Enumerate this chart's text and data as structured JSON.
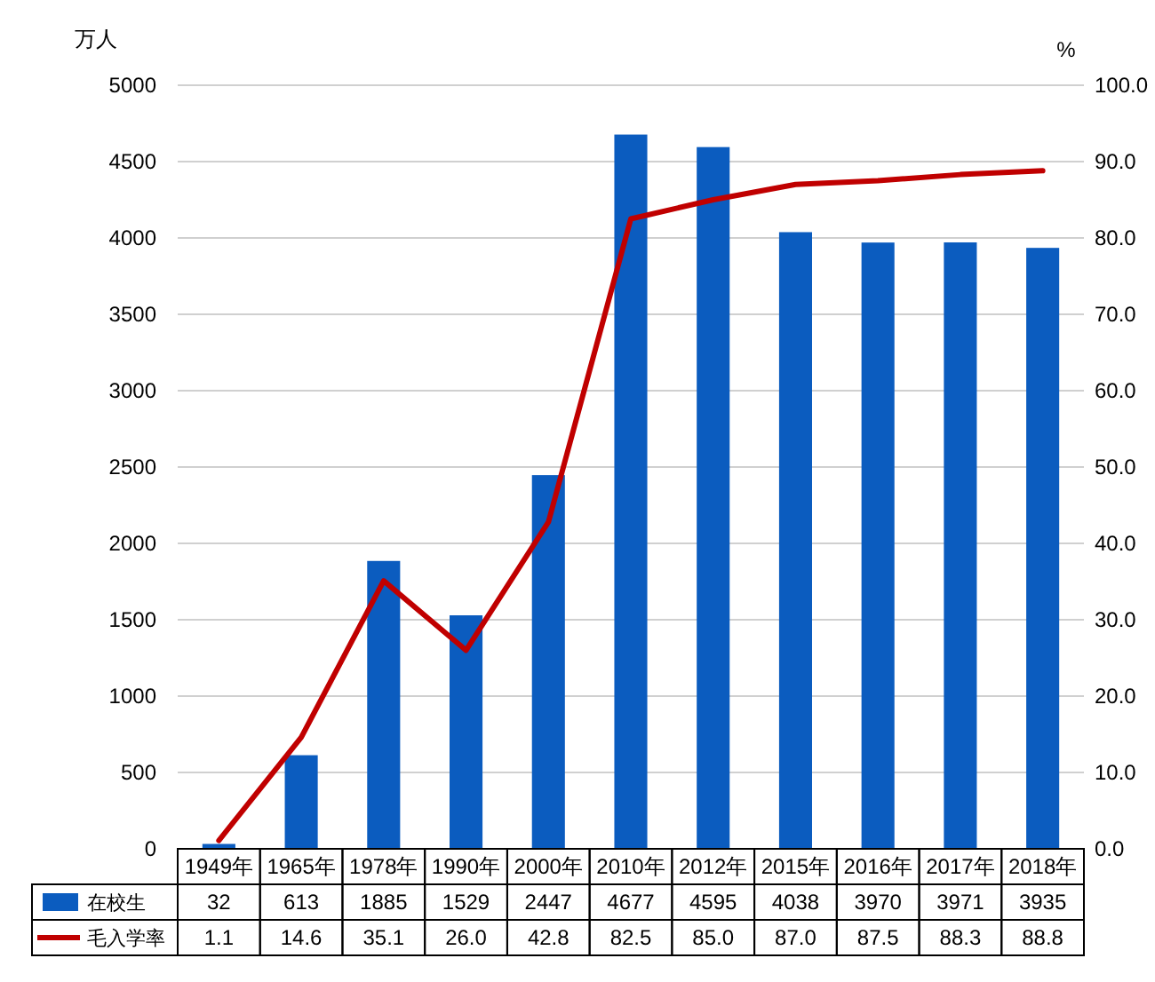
{
  "chart_data": {
    "type": "bar",
    "ylabel": "万人",
    "y2label": "%",
    "categories": [
      "1949年",
      "1965年",
      "1978年",
      "1990年",
      "2000年",
      "2010年",
      "2012年",
      "2015年",
      "2016年",
      "2017年",
      "2018年"
    ],
    "series": [
      {
        "name": "在校生",
        "color": "#0b5cbf",
        "values": [
          32,
          613,
          1885,
          1529,
          2447,
          4677,
          4595,
          4038,
          3970,
          3971,
          3935
        ]
      },
      {
        "name": "毛入学率",
        "type": "line",
        "axis": "y2",
        "color": "#c00000",
        "values": [
          1.1,
          14.6,
          35.1,
          26.0,
          42.8,
          82.5,
          85.0,
          87.0,
          87.5,
          88.3,
          88.8
        ],
        "value_labels": [
          "1.1",
          "14.6",
          "35.1",
          "26.0",
          "42.8",
          "82.5",
          "85.0",
          "87.0",
          "87.5",
          "88.3",
          "88.8"
        ]
      }
    ],
    "ylim": [
      0,
      5000
    ],
    "yticks": [
      0,
      500,
      1000,
      1500,
      2000,
      2500,
      3000,
      3500,
      4000,
      4500,
      5000
    ],
    "y2lim": [
      0,
      100
    ],
    "y2ticks": [
      {
        "value": 0,
        "label": "0.0"
      },
      {
        "value": 10,
        "label": "10.0"
      },
      {
        "value": 20,
        "label": "20.0"
      },
      {
        "value": 30,
        "label": "30.0"
      },
      {
        "value": 40,
        "label": "40.0"
      },
      {
        "value": 50,
        "label": "50.0"
      },
      {
        "value": 60,
        "label": "60.0"
      },
      {
        "value": 70,
        "label": "70.0"
      },
      {
        "value": 80,
        "label": "80.0"
      },
      {
        "value": 90,
        "label": "90.0"
      },
      {
        "value": 100,
        "label": "100.0"
      }
    ],
    "grid": "y",
    "legend": "bottom",
    "data_labels": true,
    "marker": "none",
    "line_style": "solid"
  }
}
